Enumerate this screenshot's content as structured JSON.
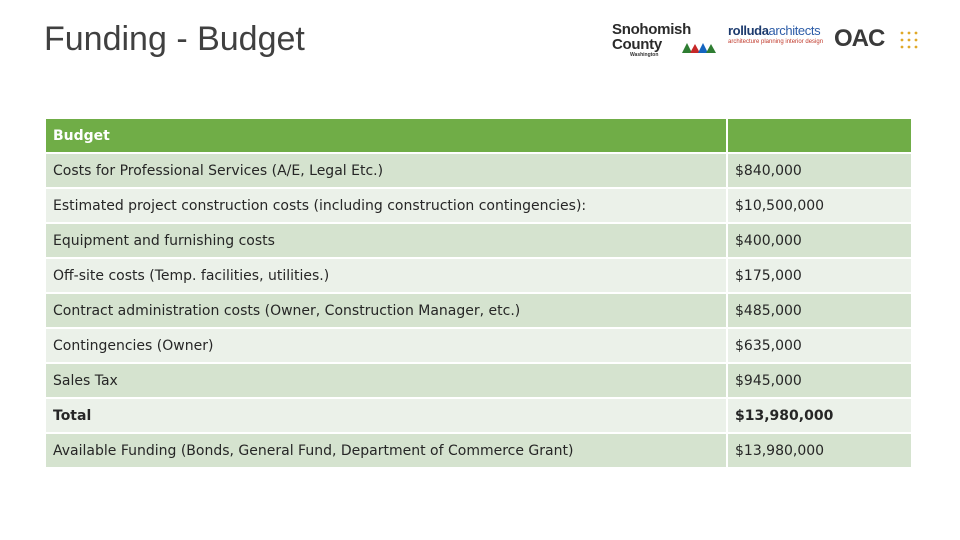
{
  "slide": {
    "title": "Funding - Budget"
  },
  "logos": {
    "county_line1": "Snohomish",
    "county_line2": "County",
    "county_sub": "Washington",
    "architect_name_part1": "rolluda",
    "architect_name_part2": "architects",
    "architect_tagline": "architecture planning interior design",
    "oac": "OAC",
    "county_icon": "trees-icon",
    "oac_icon": "dot-grid-icon"
  },
  "table": {
    "header": {
      "label": "Budget",
      "amount": ""
    },
    "rows": [
      {
        "label": "Costs for Professional Services (A/E, Legal Etc.)",
        "amount": "$840,000"
      },
      {
        "label": "Estimated project construction costs (including construction contingencies):",
        "amount": "$10,500,000"
      },
      {
        "label": "Equipment and furnishing costs",
        "amount": "$400,000"
      },
      {
        "label": "Off-site costs (Temp. facilities, utilities.)",
        "amount": "$175,000"
      },
      {
        "label": "Contract administration costs (Owner, Construction Manager, etc.)",
        "amount": "$485,000"
      },
      {
        "label": "Contingencies (Owner)",
        "amount": "$635,000"
      },
      {
        "label": "Sales Tax",
        "amount": "$945,000"
      },
      {
        "label": "Total",
        "amount": "$13,980,000"
      },
      {
        "label": "Available Funding (Bonds, General Fund, Department of Commerce Grant)",
        "amount": "$13,980,000"
      }
    ]
  },
  "colors": {
    "header_green": "#70ad47",
    "row_dark": "#d5e3cf",
    "row_light": "#ebf1e9",
    "title_text": "#404040"
  }
}
